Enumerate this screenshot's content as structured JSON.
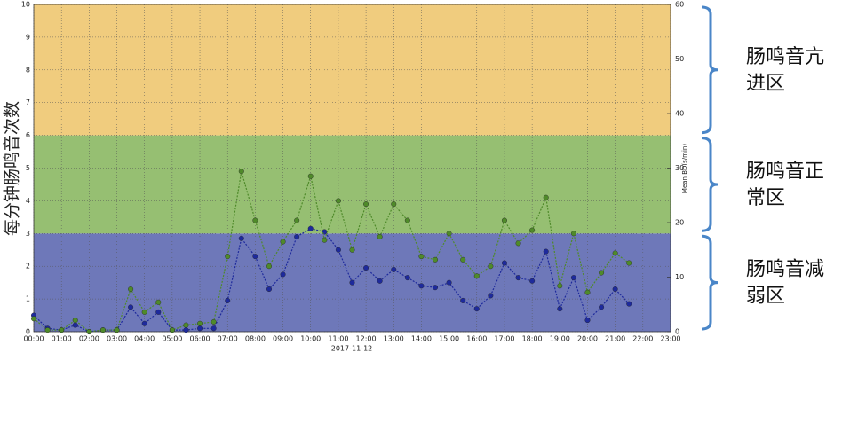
{
  "chart_data": {
    "type": "line",
    "ylabel": "每分钟肠鸣音次数",
    "y2label": "Mean BD(s/min)",
    "xlabel": "2017-11-12",
    "xlim": [
      0,
      23
    ],
    "xticks": [
      {
        "value": 0,
        "label": "00:00"
      },
      {
        "value": 1,
        "label": "01:00"
      },
      {
        "value": 2,
        "label": "02:00"
      },
      {
        "value": 3,
        "label": "03:00"
      },
      {
        "value": 4,
        "label": "04:00"
      },
      {
        "value": 5,
        "label": "05:00"
      },
      {
        "value": 6,
        "label": "06:00"
      },
      {
        "value": 7,
        "label": "07:00"
      },
      {
        "value": 8,
        "label": "08:00"
      },
      {
        "value": 9,
        "label": "09:00"
      },
      {
        "value": 10,
        "label": "10:00"
      },
      {
        "value": 11,
        "label": "11:00"
      },
      {
        "value": 12,
        "label": "12:00"
      },
      {
        "value": 13,
        "label": "13:00"
      },
      {
        "value": 14,
        "label": "14:00"
      },
      {
        "value": 15,
        "label": "15:00"
      },
      {
        "value": 16,
        "label": "16:00"
      },
      {
        "value": 17,
        "label": "17:00"
      },
      {
        "value": 18,
        "label": "18:00"
      },
      {
        "value": 19,
        "label": "19:00"
      },
      {
        "value": 20,
        "label": "20:00"
      },
      {
        "value": 21,
        "label": "21:00"
      },
      {
        "value": 22,
        "label": "22:00"
      },
      {
        "value": 23,
        "label": "23:00"
      }
    ],
    "ylim": [
      0,
      10
    ],
    "yticks": [
      0,
      1,
      2,
      3,
      4,
      5,
      6,
      7,
      8,
      9,
      10
    ],
    "y2lim": [
      0,
      60
    ],
    "y2ticks": [
      0,
      10,
      20,
      30,
      40,
      50,
      60
    ],
    "grid": true,
    "bands": [
      {
        "from": 0,
        "to": 3,
        "color": "#6e78b9"
      },
      {
        "from": 3,
        "to": 6,
        "color": "#96bf72"
      },
      {
        "from": 6,
        "to": 10,
        "color": "#f0cc7e"
      }
    ],
    "annotations": [
      {
        "from": 6,
        "to": 10,
        "lines": [
          "肠鸣音亢",
          "进区"
        ]
      },
      {
        "from": 3,
        "to": 6,
        "lines": [
          "肠鸣音正",
          "常区"
        ]
      },
      {
        "from": 0,
        "to": 3,
        "lines": [
          "肠鸣音减",
          "弱区"
        ]
      }
    ],
    "x": [
      0,
      0.5,
      1,
      1.5,
      2,
      2.5,
      3,
      3.5,
      4,
      4.5,
      5,
      5.5,
      6,
      6.5,
      7,
      7.5,
      8,
      8.5,
      9,
      9.5,
      10,
      10.5,
      11,
      11.5,
      12,
      12.5,
      13,
      13.5,
      14,
      14.5,
      15,
      15.5,
      16,
      16.5,
      17,
      17.5,
      18,
      18.5,
      19,
      19.5,
      20,
      20.5,
      21,
      21.5
    ],
    "series": [
      {
        "color": "#1e2a9c",
        "values": [
          0.5,
          0.1,
          0.05,
          0.2,
          0,
          0.05,
          0.05,
          0.75,
          0.25,
          0.6,
          0.05,
          0.05,
          0.1,
          0.1,
          0.95,
          2.85,
          2.3,
          1.3,
          1.75,
          2.9,
          3.15,
          3.05,
          2.5,
          1.5,
          1.95,
          1.55,
          1.9,
          1.65,
          1.4,
          1.35,
          1.5,
          0.95,
          0.7,
          1.1,
          2.1,
          1.65,
          1.55,
          2.45,
          0.7,
          1.65,
          0.35,
          0.75,
          1.3,
          0.85
        ]
      },
      {
        "color": "#4f8a2a",
        "axis": "y2",
        "values": [
          2.4,
          0.3,
          0.3,
          2.1,
          0,
          0.3,
          0.3,
          7.8,
          3.6,
          5.4,
          0.3,
          1.2,
          1.5,
          1.8,
          13.8,
          29.4,
          20.4,
          12,
          16.5,
          20.4,
          28.5,
          16.8,
          24,
          15,
          23.4,
          17.4,
          23.4,
          20.4,
          13.8,
          13.2,
          18,
          13.2,
          10.2,
          12,
          20.4,
          16.2,
          18.6,
          24.6,
          8.4,
          18,
          7.2,
          10.8,
          14.4,
          12.6
        ]
      }
    ]
  }
}
